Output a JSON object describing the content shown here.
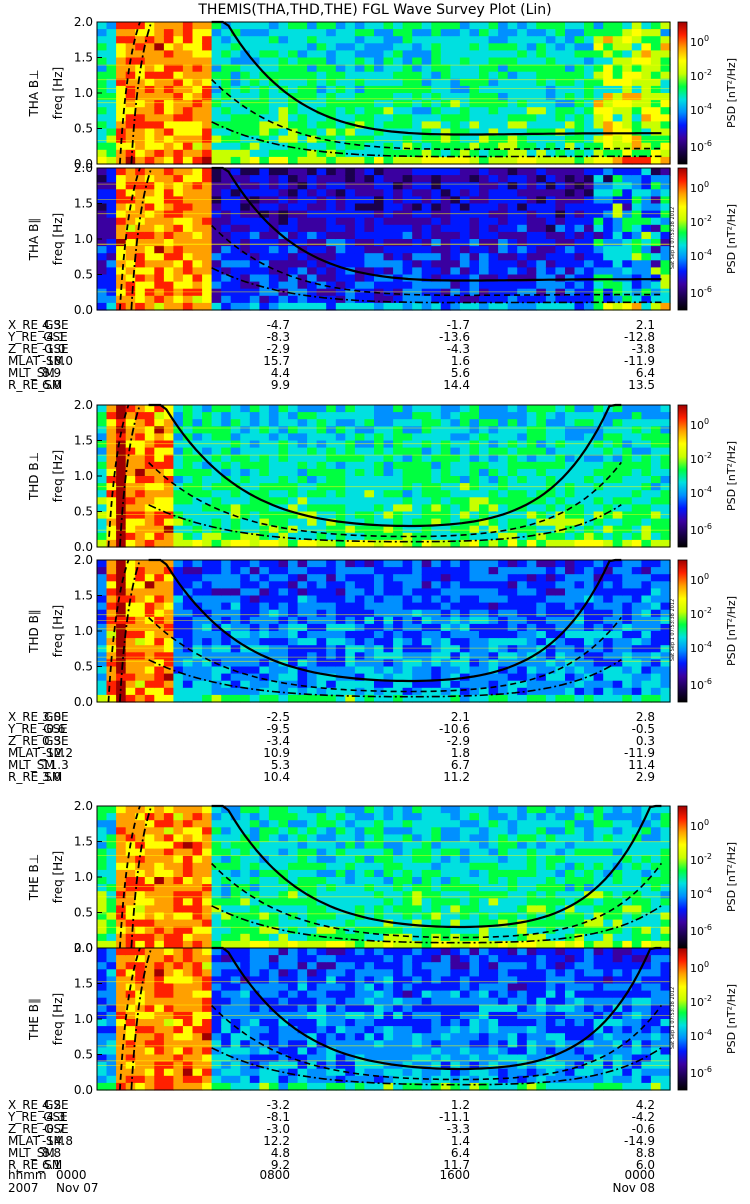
{
  "title": "THEMIS(THA,THD,THE) FGL Wave Survey Plot (Lin)",
  "colorbar": {
    "label": "PSD [nT²/Hz]",
    "ticks": [
      "10^0",
      "10^-2",
      "10^-4",
      "10^-6"
    ],
    "colors": [
      "#000000",
      "#1a004d",
      "#3a00a0",
      "#0018ff",
      "#0090ff",
      "#00e0e0",
      "#00ff40",
      "#c8ff00",
      "#ffff00",
      "#ffa000",
      "#ff2000",
      "#a00000"
    ]
  },
  "timestamp": "Sat Sep  1 07:53:38 2012",
  "chart_data": {
    "type": "heatmap",
    "xlabel": "hhmm",
    "ylabel": "freq [Hz]",
    "ylim": [
      0,
      2.0
    ],
    "yticks": [
      "0.0",
      "0.5",
      "1.0",
      "1.5",
      "2.0"
    ],
    "x_ticks": [
      {
        "hhmm": "0000",
        "date": "Nov 07"
      },
      {
        "hhmm": "0800",
        "date": ""
      },
      {
        "hhmm": "1600",
        "date": ""
      },
      {
        "hhmm": "0000",
        "date": "Nov 08"
      }
    ],
    "year": "2007",
    "probes": [
      {
        "name": "THA",
        "panels": [
          {
            "label": "THA B⊥"
          },
          {
            "label": "THA B∥"
          }
        ],
        "ephemeris": [
          {
            "name": "X_RE_GSE",
            "values": [
              "4.3",
              "-4.7",
              "-1.7",
              "2.1"
            ]
          },
          {
            "name": "Y_RE_GSE",
            "values": [
              "-4.1",
              "-8.3",
              "-13.6",
              "-12.8"
            ]
          },
          {
            "name": "Z_RE_GSE",
            "values": [
              "-1.0",
              "-2.9",
              "-4.3",
              "-3.8"
            ]
          },
          {
            "name": "MLAT_SM",
            "values": [
              "-18.0",
              "15.7",
              "1.6",
              "-11.9"
            ]
          },
          {
            "name": "MLT_SM",
            "values": [
              "8.9",
              "4.4",
              "5.6",
              "6.4"
            ]
          },
          {
            "name": "R_RE_SM",
            "values": [
              "6.0",
              "9.9",
              "14.4",
              "13.5"
            ]
          }
        ]
      },
      {
        "name": "THD",
        "panels": [
          {
            "label": "THD B⊥"
          },
          {
            "label": "THD B∥"
          }
        ],
        "ephemeris": [
          {
            "name": "X_RE_GSE",
            "values": [
              "3.0",
              "-2.5",
              "2.1",
              "2.8"
            ]
          },
          {
            "name": "Y_RE_GSE",
            "values": [
              "-0.6",
              "-9.5",
              "-10.6",
              "-0.5"
            ]
          },
          {
            "name": "Z_RE_GSE",
            "values": [
              "0.3",
              "-3.4",
              "-2.9",
              "0.3"
            ]
          },
          {
            "name": "MLAT_SM",
            "values": [
              "-12.2",
              "10.9",
              "1.8",
              "-11.9"
            ]
          },
          {
            "name": "MLT_SM",
            "values": [
              "11.3",
              "5.3",
              "6.7",
              "11.4"
            ]
          },
          {
            "name": "R_RE_SM",
            "values": [
              "3.0",
              "10.4",
              "11.2",
              "2.9"
            ]
          }
        ]
      },
      {
        "name": "THE",
        "panels": [
          {
            "label": "THE B⊥"
          },
          {
            "label": "THE B∥"
          }
        ],
        "ephemeris": [
          {
            "name": "X_RE_GSE",
            "values": [
              "4.2",
              "-3.2",
              "1.2",
              "4.2"
            ]
          },
          {
            "name": "Y_RE_GSE",
            "values": [
              "-4.3",
              "-8.1",
              "-11.1",
              "-4.2"
            ]
          },
          {
            "name": "Z_RE_GSE",
            "values": [
              "-0.7",
              "-3.0",
              "-3.3",
              "-0.6"
            ]
          },
          {
            "name": "MLAT_SM",
            "values": [
              "-14.8",
              "12.2",
              "1.4",
              "-14.9"
            ]
          },
          {
            "name": "MLT_SM",
            "values": [
              "8.8",
              "4.8",
              "6.4",
              "8.8"
            ]
          },
          {
            "name": "R_RE_SM",
            "values": [
              "6.1",
              "9.2",
              "11.7",
              "6.0"
            ]
          }
        ]
      }
    ]
  }
}
